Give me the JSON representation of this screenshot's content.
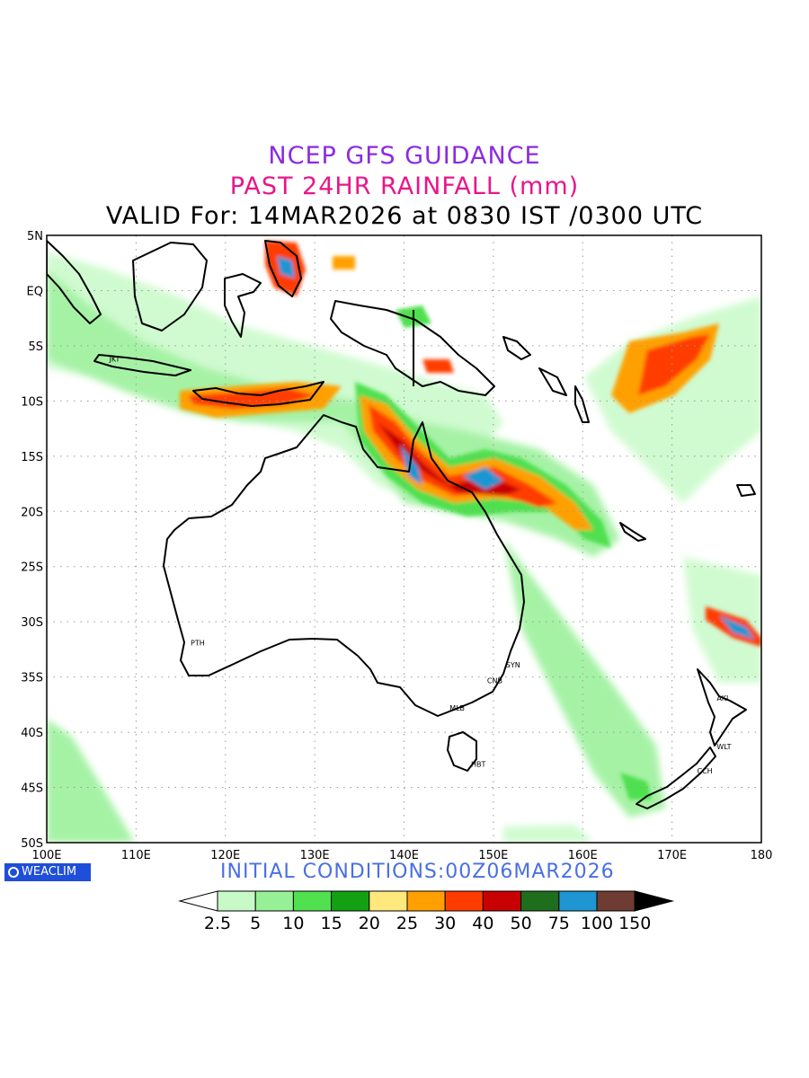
{
  "title": {
    "line1": "NCEP GFS GUIDANCE",
    "line2": "PAST 24HR RAINFALL (mm)",
    "line3": "VALID For: 14MAR2026 at 0830 IST /0300 UTC",
    "line1_color": "#8a2be2",
    "line2_color": "#e8168a"
  },
  "map": {
    "lon_range": [
      100,
      180
    ],
    "lat_range": [
      -50,
      5
    ],
    "grid": "dotted",
    "lon_labels": [
      "100E",
      "110E",
      "120E",
      "130E",
      "140E",
      "150E",
      "160E",
      "170E",
      "180"
    ],
    "lat_labels": [
      "5N",
      "EQ",
      "5S",
      "10S",
      "15S",
      "20S",
      "25S",
      "30S",
      "35S",
      "40S",
      "45S",
      "50S"
    ],
    "stations": [
      {
        "code": "JKT",
        "lon": 106.8,
        "lat": -6.2
      },
      {
        "code": "PTH",
        "lon": 115.9,
        "lat": -31.9
      },
      {
        "code": "SYN",
        "lon": 151.2,
        "lat": -33.9
      },
      {
        "code": "CNB",
        "lon": 149.1,
        "lat": -35.3
      },
      {
        "code": "MLB",
        "lon": 144.9,
        "lat": -37.8
      },
      {
        "code": "HBT",
        "lon": 147.3,
        "lat": -42.9
      },
      {
        "code": "AKL",
        "lon": 174.8,
        "lat": -36.9
      },
      {
        "code": "WLT",
        "lon": 174.8,
        "lat": -41.3
      },
      {
        "code": "CCH",
        "lon": 172.6,
        "lat": -43.5
      }
    ]
  },
  "branding": {
    "logo_text": "WEACLIM",
    "logo_color": "#1f4fd8"
  },
  "initial_conditions": "INITIAL  CONDITIONS:00Z06MAR2026",
  "initial_color": "#4a6fe3",
  "colorbar": {
    "labels": [
      "2.5",
      "5",
      "10",
      "15",
      "20",
      "25",
      "30",
      "40",
      "50",
      "75",
      "100",
      "150"
    ],
    "colors": [
      "#ffffff",
      "#c8fac8",
      "#96f096",
      "#50e050",
      "#14a014",
      "#ffe87c",
      "#ffa000",
      "#ff3c00",
      "#c80000",
      "#1e6e1e",
      "#1e96d2",
      "#6e3c32",
      "#000000"
    ]
  }
}
